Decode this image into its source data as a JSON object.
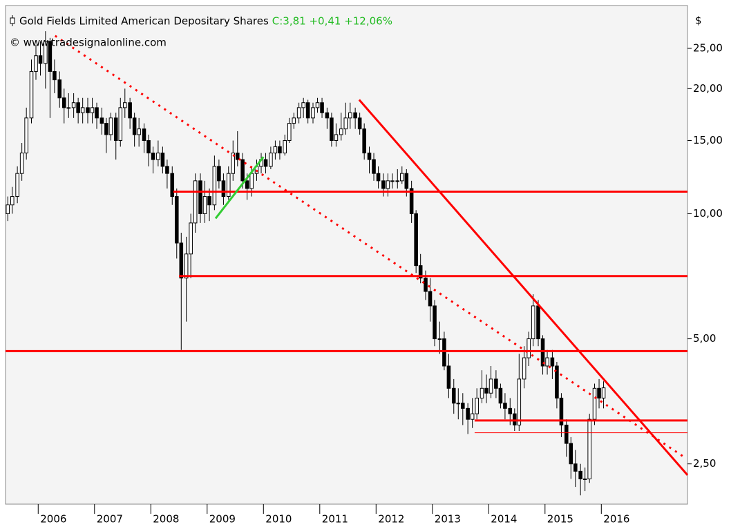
{
  "chart_data": {
    "type": "candlestick",
    "title": "Gold Fields Limited American Depositary Shares",
    "quote": "C:3,81 +0,41 +12,06%",
    "source": "© www.tradesignalonline.com",
    "unit": "$",
    "log_scale": true,
    "candle_up_color": "#ffffff",
    "candle_down_color": "#000000",
    "candle_line_color": "#000000",
    "xlim": [
      2005.42,
      2017.53
    ],
    "xticks": [
      2006,
      2007,
      2008,
      2009,
      2010,
      2011,
      2012,
      2013,
      2014,
      2015,
      2016
    ],
    "ylim": [
      2.0,
      31.7
    ],
    "yticks": [
      {
        "value": 2.5,
        "label": "2,50"
      },
      {
        "value": 5,
        "label": "5,00"
      },
      {
        "value": 10,
        "label": "10,00"
      },
      {
        "value": 15,
        "label": "15,00"
      },
      {
        "value": 20,
        "label": "20,00"
      },
      {
        "value": 25,
        "label": "25,00"
      }
    ],
    "x": [
      2005.46,
      2005.54,
      2005.63,
      2005.71,
      2005.79,
      2005.88,
      2005.96,
      2006.04,
      2006.13,
      2006.21,
      2006.29,
      2006.38,
      2006.46,
      2006.54,
      2006.63,
      2006.71,
      2006.79,
      2006.88,
      2006.96,
      2007.04,
      2007.13,
      2007.21,
      2007.29,
      2007.38,
      2007.46,
      2007.54,
      2007.63,
      2007.71,
      2007.79,
      2007.88,
      2007.96,
      2008.04,
      2008.13,
      2008.21,
      2008.29,
      2008.38,
      2008.46,
      2008.54,
      2008.63,
      2008.71,
      2008.79,
      2008.88,
      2008.96,
      2009.04,
      2009.13,
      2009.21,
      2009.29,
      2009.38,
      2009.46,
      2009.54,
      2009.63,
      2009.71,
      2009.79,
      2009.88,
      2009.96,
      2010.04,
      2010.13,
      2010.21,
      2010.29,
      2010.38,
      2010.46,
      2010.54,
      2010.63,
      2010.71,
      2010.79,
      2010.88,
      2010.96,
      2011.04,
      2011.13,
      2011.21,
      2011.29,
      2011.38,
      2011.46,
      2011.54,
      2011.63,
      2011.71,
      2011.79,
      2011.88,
      2011.96,
      2012.04,
      2012.13,
      2012.21,
      2012.29,
      2012.38,
      2012.46,
      2012.54,
      2012.63,
      2012.71,
      2012.79,
      2012.88,
      2012.96,
      2013.04,
      2013.13,
      2013.21,
      2013.29,
      2013.38,
      2013.46,
      2013.54,
      2013.63,
      2013.71,
      2013.79,
      2013.88,
      2013.96,
      2014.04,
      2014.13,
      2014.21,
      2014.29,
      2014.38,
      2014.46,
      2014.54,
      2014.63,
      2014.71,
      2014.79,
      2014.88,
      2014.96,
      2015.04,
      2015.13,
      2015.21,
      2015.29,
      2015.38,
      2015.46,
      2015.54,
      2015.63,
      2015.71,
      2015.79,
      2015.88,
      2015.96,
      2016.04
    ],
    "open": [
      10,
      10.5,
      11,
      12.5,
      14,
      17,
      22,
      24,
      23,
      26,
      22,
      21,
      19,
      18,
      18,
      18.5,
      17.5,
      18,
      17.5,
      18,
      17,
      16.5,
      15.5,
      17,
      15,
      18,
      18.5,
      17,
      15.5,
      16,
      15,
      14,
      13.5,
      14,
      13,
      12.5,
      11,
      8.5,
      7,
      8,
      9.5,
      12,
      10,
      11,
      10.5,
      13,
      12,
      11,
      12.5,
      14,
      13.5,
      12,
      11.5,
      12.5,
      13,
      13.5,
      13,
      14,
      14.5,
      14,
      15,
      16.5,
      17,
      18,
      18.5,
      17,
      18,
      18.5,
      17.5,
      17,
      15,
      15.5,
      16,
      17,
      17.5,
      17,
      16,
      14,
      13.5,
      12.5,
      12,
      11.5,
      12,
      12,
      12,
      12.5,
      11.5,
      10,
      7.5,
      7,
      6.5,
      6,
      5,
      5,
      4.3,
      3.8,
      3.5,
      3.5,
      3.4,
      3.2,
      3.3,
      3.6,
      3.8,
      3.7,
      4,
      3.8,
      3.5,
      3.4,
      3.3,
      3.1,
      4,
      4.5,
      5,
      6,
      5,
      4.3,
      4.5,
      4.3,
      3.6,
      3.1,
      2.8,
      2.5,
      2.4,
      2.3,
      2.3,
      3.2,
      3.8,
      3.6
    ],
    "high": [
      11,
      11.6,
      13,
      14.8,
      18,
      23.5,
      25.5,
      26,
      27.5,
      26.5,
      23.5,
      22,
      20,
      19.5,
      19.5,
      19,
      19,
      19,
      19,
      18.5,
      18,
      17,
      17.5,
      17.5,
      19,
      20,
      19,
      17.5,
      17,
      16.5,
      15.5,
      14.5,
      15,
      14.5,
      13.5,
      13,
      11.5,
      9,
      8.8,
      10,
      12.5,
      12.5,
      12,
      11.5,
      13.8,
      13.5,
      12.5,
      13,
      15,
      15.8,
      14,
      12.5,
      13,
      13.5,
      14,
      14,
      14.5,
      15,
      15,
      15.5,
      17,
      17.5,
      18.5,
      19,
      18.8,
      18.5,
      19,
      19,
      18,
      17.5,
      16.5,
      17.5,
      18.5,
      18.5,
      18,
      17.5,
      16.5,
      14.5,
      14,
      13,
      12.5,
      12.5,
      12.5,
      12.8,
      13,
      12.8,
      12,
      10.2,
      8,
      7.3,
      7,
      6.2,
      5.5,
      5.2,
      4.6,
      4,
      3.8,
      3.7,
      3.5,
      3.6,
      3.8,
      4.2,
      4.1,
      4.3,
      4.2,
      3.9,
      3.7,
      3.6,
      3.4,
      4.6,
      4.8,
      5.2,
      6.4,
      6.2,
      5.1,
      4.7,
      4.7,
      4.4,
      3.7,
      3.2,
      2.9,
      2.7,
      2.5,
      2.45,
      3.3,
      3.9,
      4.0,
      3.95
    ],
    "low": [
      9.6,
      10,
      10.6,
      12,
      13.5,
      16.5,
      21,
      21.5,
      20,
      17,
      19.5,
      18,
      16.5,
      17,
      17,
      16.5,
      16.5,
      16.5,
      16.5,
      16,
      15.5,
      14,
      15,
      13.5,
      14.5,
      17,
      16,
      14.5,
      14.5,
      14,
      13,
      12.5,
      13,
      12.5,
      11.5,
      10.5,
      7.8,
      4.7,
      5.5,
      7,
      9,
      9.5,
      9.5,
      9.6,
      10.2,
      11.5,
      10.5,
      10.8,
      12,
      13,
      11.5,
      10.8,
      11,
      12,
      12.5,
      12.5,
      12.8,
      13.5,
      13.5,
      13.8,
      14.8,
      16,
      16.5,
      17,
      16.5,
      16.5,
      17.5,
      17,
      16,
      14.5,
      14.5,
      15,
      15.5,
      16,
      16,
      15.5,
      13.5,
      12.5,
      12,
      11.5,
      11,
      11,
      11.5,
      11.5,
      11.8,
      11,
      9.5,
      7.2,
      6.8,
      6.2,
      5.5,
      4.8,
      4.6,
      4.2,
      3.6,
      3.3,
      3.2,
      3.1,
      2.95,
      3.05,
      3.2,
      3.5,
      3.5,
      3.6,
      3.6,
      3.4,
      3.2,
      3.1,
      3.0,
      3.0,
      3.8,
      4.3,
      4.8,
      4.8,
      4.1,
      4.1,
      4.0,
      3.4,
      2.9,
      2.6,
      2.3,
      2.2,
      2.1,
      2.15,
      2.25,
      3.1,
      3.4,
      3.4
    ],
    "close": [
      10.5,
      11,
      12.5,
      14,
      17,
      22,
      24,
      23,
      26,
      22,
      21,
      19,
      18,
      18,
      18.5,
      17.5,
      18,
      17.5,
      18,
      17,
      16.5,
      15.5,
      17,
      15,
      18,
      18.5,
      17,
      15.5,
      16,
      15,
      14,
      13.5,
      14,
      13,
      12.5,
      11,
      8.5,
      7,
      8,
      9.5,
      12,
      10,
      11,
      10.5,
      13,
      12,
      11,
      12.5,
      14,
      13.5,
      12,
      11.5,
      12.5,
      13,
      13.5,
      13,
      14,
      14.5,
      14,
      15,
      16.5,
      17,
      18,
      18.5,
      17,
      18,
      18.5,
      17.5,
      17,
      15,
      15.5,
      16,
      17,
      17.5,
      17,
      16,
      14,
      13.5,
      12.5,
      12,
      11.5,
      12,
      12,
      12,
      12.5,
      11.5,
      10,
      7.5,
      7,
      6.5,
      6,
      5,
      5,
      4.3,
      3.8,
      3.5,
      3.5,
      3.4,
      3.2,
      3.3,
      3.6,
      3.8,
      3.7,
      4,
      3.8,
      3.5,
      3.4,
      3.3,
      3.1,
      4,
      4.5,
      5,
      6,
      5,
      4.3,
      4.5,
      4.3,
      3.6,
      3.1,
      2.8,
      2.5,
      2.4,
      2.3,
      2.3,
      3.2,
      3.8,
      3.6,
      3.81
    ],
    "levels": [
      {
        "value": 11.3,
        "x_start": 2008.4,
        "color": "#ff0000",
        "width": 3
      },
      {
        "value": 7.08,
        "x_start": 2008.5,
        "color": "#ff0000",
        "width": 3
      },
      {
        "value": 4.67,
        "x_start": 2005.42,
        "color": "#ff0000",
        "width": 3
      },
      {
        "value": 3.18,
        "x_start": 2013.75,
        "color": "#ff0000",
        "width": 3
      },
      {
        "value": 2.97,
        "x_start": 2013.75,
        "color": "#ff0000",
        "width": 1
      }
    ],
    "trend_lines": [
      {
        "x": [
          2011.7,
          2017.53
        ],
        "y": [
          18.8,
          2.35
        ],
        "color": "#ff0000",
        "style": "solid"
      },
      {
        "x": [
          2006.3,
          2017.5
        ],
        "y": [
          26.8,
          2.58
        ],
        "color": "#ff0000",
        "style": "dotted"
      },
      {
        "x": [
          2009.15,
          2010.0
        ],
        "y": [
          9.74,
          13.7
        ],
        "color": "#33cc33",
        "style": "solid"
      }
    ]
  }
}
